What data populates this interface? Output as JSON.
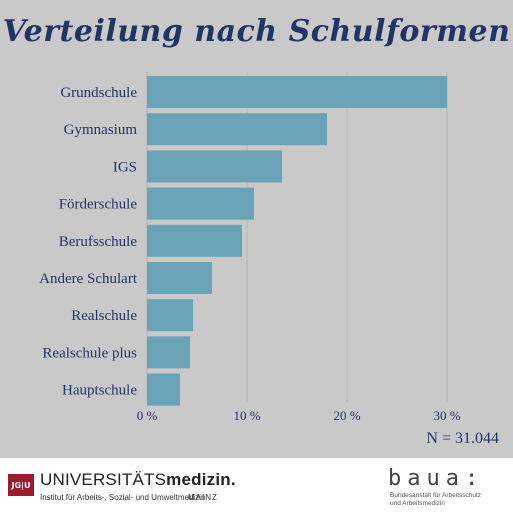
{
  "chart_data": {
    "type": "bar",
    "orientation": "horizontal",
    "title": "Verteilung nach Schulformen",
    "categories": [
      "Grundschule",
      "Gymnasium",
      "IGS",
      "Förderschule",
      "Berufsschule",
      "Andere Schulart",
      "Realschule",
      "Realschule plus",
      "Hauptschule"
    ],
    "values": [
      30,
      18,
      13.5,
      10.7,
      9.5,
      6.5,
      4.6,
      4.3,
      3.3
    ],
    "xlim": [
      0,
      30
    ],
    "xticks": [
      "0 %",
      "10 %",
      "20 %",
      "30 %"
    ],
    "grid": true,
    "bar_color": "#6aa3b8",
    "note": "N = 31.044"
  },
  "footer": {
    "jgu": "JG|U",
    "uni_prefix": "UNIVERSITÄTS",
    "uni_bold": "medizin.",
    "uni_sub": "Institut für Arbeits-, Sozial- und Umweltmedizin",
    "uni_mainz": "MAINZ",
    "baua_logo": "baua:",
    "baua_sub_line1": "Bundesanstalt für Arbeitsschutz",
    "baua_sub_line2": "und Arbeitsmedizin"
  },
  "colors": {
    "title": "#1f3566",
    "background": "#c9c9c9",
    "bar": "#6aa3b8"
  }
}
